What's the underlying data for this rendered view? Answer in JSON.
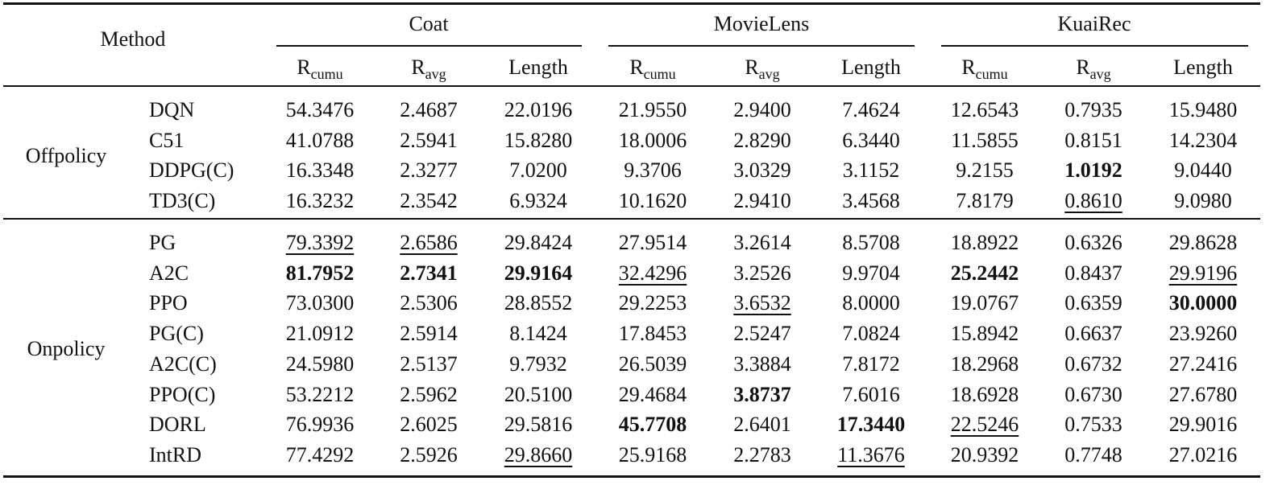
{
  "header": {
    "method": "Method",
    "datasets": [
      "Coat",
      "MovieLens",
      "KuaiRec"
    ],
    "columns": [
      {
        "main": "R",
        "sub": "cumu"
      },
      {
        "main": "R",
        "sub": "avg"
      },
      {
        "main": "Length"
      }
    ]
  },
  "groups": [
    {
      "label": "Offpolicy",
      "rows": [
        {
          "method": "DQN",
          "cells": [
            "54.3476",
            "2.4687",
            "22.0196",
            "21.9550",
            "2.9400",
            "7.4624",
            "12.6543",
            "0.7935",
            "15.9480"
          ]
        },
        {
          "method": "C51",
          "cells": [
            "41.0788",
            "2.5941",
            "15.8280",
            "18.0006",
            "2.8290",
            "6.3440",
            "11.5855",
            "0.8151",
            "14.2304"
          ]
        },
        {
          "method": "DDPG(C)",
          "cells": [
            "16.3348",
            "2.3277",
            "7.0200",
            "9.3706",
            "3.0329",
            "3.1152",
            "9.2155",
            {
              "text": "1.0192",
              "style": "bold"
            },
            "9.0440"
          ]
        },
        {
          "method": "TD3(C)",
          "cells": [
            "16.3232",
            "2.3542",
            "6.9324",
            "10.1620",
            "2.9410",
            "3.4568",
            "7.8179",
            {
              "text": "0.8610",
              "style": "underline"
            },
            "9.0980"
          ]
        }
      ]
    },
    {
      "label": "Onpolicy",
      "rows": [
        {
          "method": "PG",
          "cells": [
            {
              "text": "79.3392",
              "style": "underline"
            },
            {
              "text": "2.6586",
              "style": "underline"
            },
            "29.8424",
            "27.9514",
            "3.2614",
            "8.5708",
            "18.8922",
            "0.6326",
            "29.8628"
          ]
        },
        {
          "method": "A2C",
          "cells": [
            {
              "text": "81.7952",
              "style": "bold"
            },
            {
              "text": "2.7341",
              "style": "bold"
            },
            {
              "text": "29.9164",
              "style": "bold"
            },
            {
              "text": "32.4296",
              "style": "underline"
            },
            "3.2526",
            "9.9704",
            {
              "text": "25.2442",
              "style": "bold"
            },
            "0.8437",
            {
              "text": "29.9196",
              "style": "underline"
            }
          ]
        },
        {
          "method": "PPO",
          "cells": [
            "73.0300",
            "2.5306",
            "28.8552",
            "29.2253",
            {
              "text": "3.6532",
              "style": "underline"
            },
            "8.0000",
            "19.0767",
            "0.6359",
            {
              "text": "30.0000",
              "style": "bold"
            }
          ]
        },
        {
          "method": "PG(C)",
          "cells": [
            "21.0912",
            "2.5914",
            "8.1424",
            "17.8453",
            "2.5247",
            "7.0824",
            "15.8942",
            "0.6637",
            "23.9260"
          ]
        },
        {
          "method": "A2C(C)",
          "cells": [
            "24.5980",
            "2.5137",
            "9.7932",
            "26.5039",
            "3.3884",
            "7.8172",
            "18.2968",
            "0.6732",
            "27.2416"
          ]
        },
        {
          "method": "PPO(C)",
          "cells": [
            "53.2212",
            "2.5962",
            "20.5100",
            "29.4684",
            {
              "text": "3.8737",
              "style": "bold"
            },
            "7.6016",
            "18.6928",
            "0.6730",
            "27.6780"
          ]
        },
        {
          "method": "DORL",
          "cells": [
            "76.9936",
            "2.6025",
            "29.5816",
            {
              "text": "45.7708",
              "style": "bold"
            },
            "2.6401",
            {
              "text": "17.3440",
              "style": "bold"
            },
            {
              "text": "22.5246",
              "style": "underline"
            },
            "0.7533",
            "29.9016"
          ]
        },
        {
          "method": "IntRD",
          "cells": [
            "77.4292",
            "2.5926",
            {
              "text": "29.8660",
              "style": "underline"
            },
            "25.9168",
            "2.2783",
            {
              "text": "11.3676",
              "style": "underline"
            },
            "20.9392",
            "0.7748",
            "27.0216"
          ]
        }
      ]
    }
  ]
}
